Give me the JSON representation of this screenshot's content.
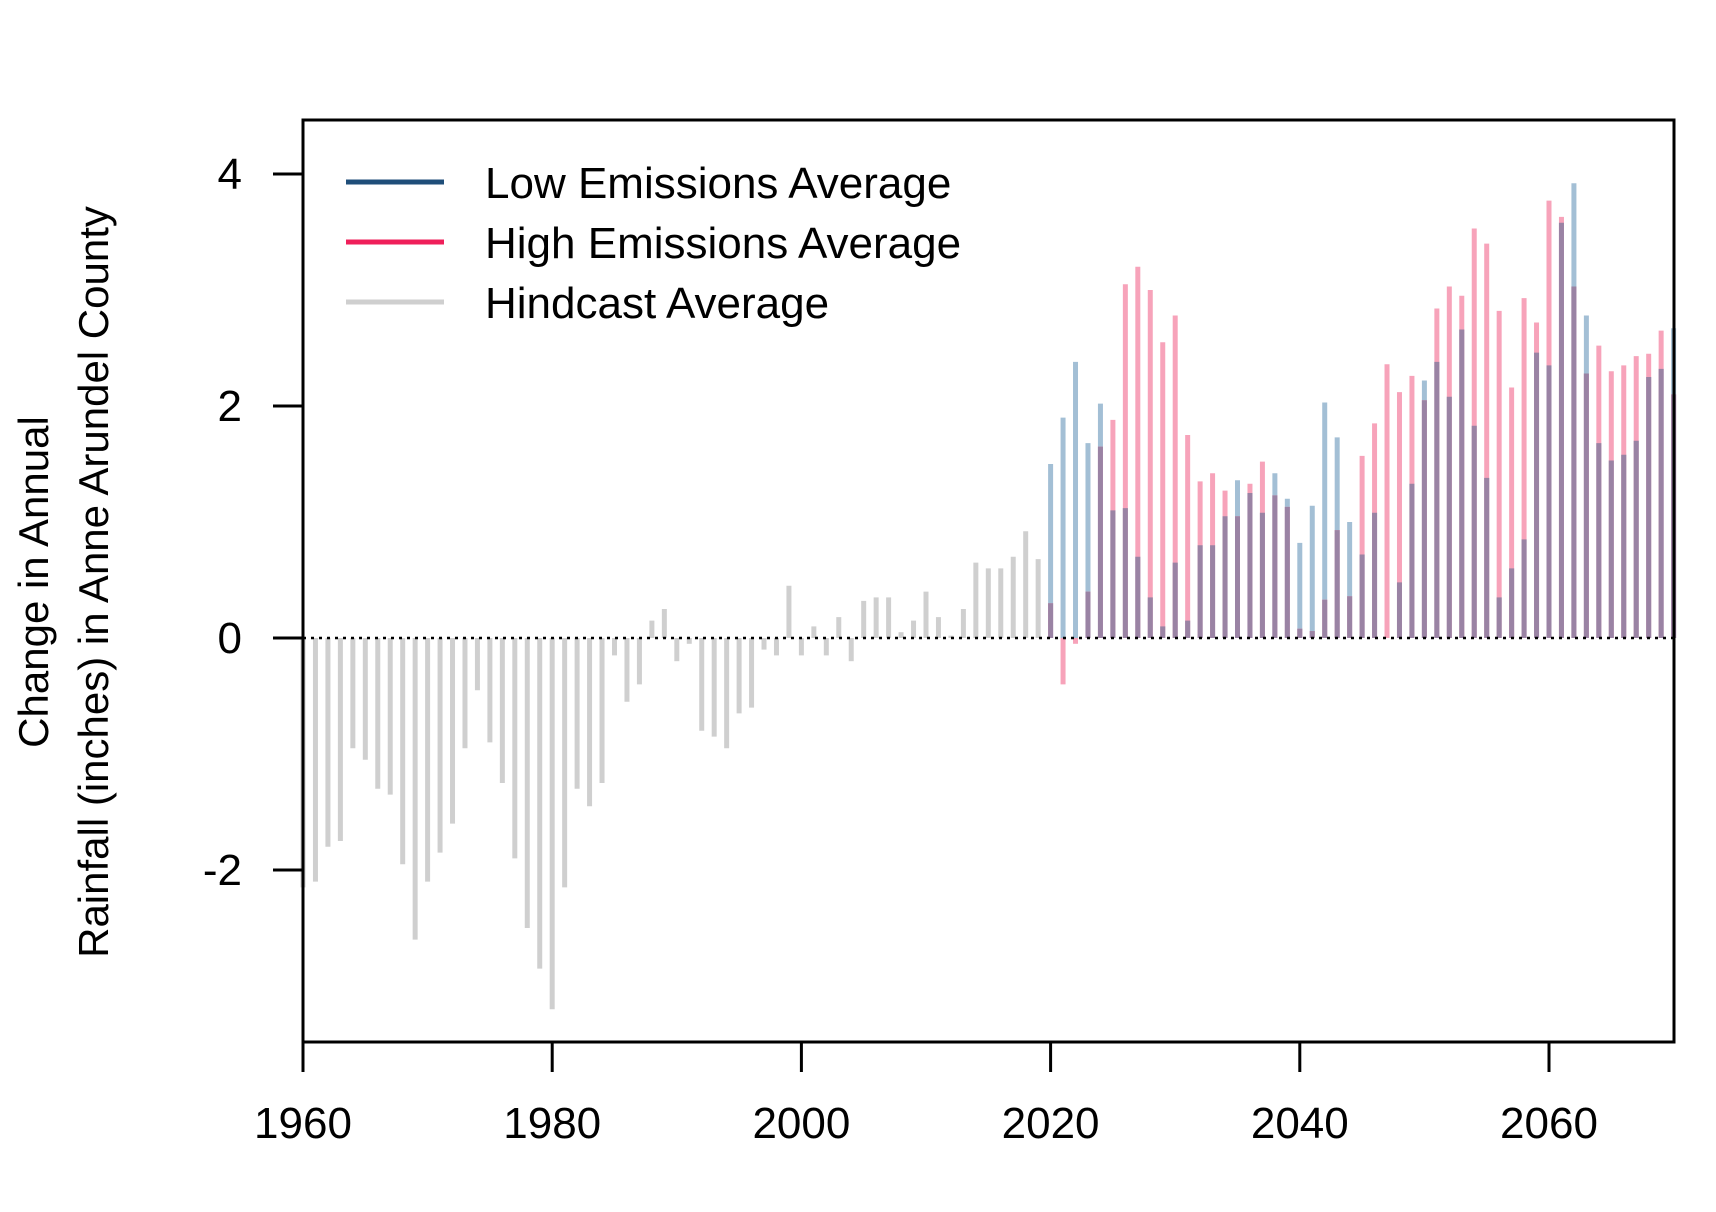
{
  "chart_data": {
    "type": "bar",
    "ylabel_line1": "Change in Annual",
    "ylabel_line2": "Rainfall (inches) in Anne Arundel County",
    "xlim": [
      1960,
      2070
    ],
    "ylim": [
      -3.5,
      4.5
    ],
    "xticks": [
      "1960",
      "1980",
      "2000",
      "2020",
      "2040",
      "2060"
    ],
    "yticks": [
      "-2",
      "0",
      "2",
      "4"
    ],
    "legend_position": "top-left",
    "colors": {
      "low": "#1f4e79",
      "high": "#ef1f5a",
      "hindcast": "#cfcfcf",
      "low_bar": "#a3bfd5",
      "high_bar": "#f7a3ba",
      "overlap_bar": "#9a83a4"
    },
    "series": [
      {
        "name": "Hindcast Average",
        "x": [
          1960,
          1961,
          1962,
          1963,
          1964,
          1965,
          1966,
          1967,
          1968,
          1969,
          1970,
          1971,
          1972,
          1973,
          1974,
          1975,
          1976,
          1977,
          1978,
          1979,
          1980,
          1981,
          1982,
          1983,
          1984,
          1985,
          1986,
          1987,
          1988,
          1989,
          1990,
          1991,
          1992,
          1993,
          1994,
          1995,
          1996,
          1997,
          1998,
          1999,
          2000,
          2001,
          2002,
          2003,
          2004,
          2005,
          2006,
          2007,
          2008,
          2009,
          2010,
          2011,
          2012,
          2013,
          2014,
          2015,
          2016,
          2017,
          2018,
          2019
        ],
        "values": [
          -2.15,
          -2.1,
          -1.8,
          -1.75,
          -0.95,
          -1.05,
          -1.3,
          -1.35,
          -1.95,
          -2.6,
          -2.1,
          -1.85,
          -1.6,
          -0.95,
          -0.45,
          -0.9,
          -1.25,
          -1.9,
          -2.5,
          -2.85,
          -3.2,
          -2.15,
          -1.3,
          -1.45,
          -1.25,
          -0.15,
          -0.55,
          -0.4,
          0.15,
          0.25,
          -0.2,
          -0.05,
          -0.8,
          -0.85,
          -0.95,
          -0.65,
          -0.6,
          -0.1,
          -0.15,
          0.45,
          -0.15,
          0.1,
          -0.15,
          0.18,
          -0.2,
          0.32,
          0.35,
          0.35,
          0.05,
          0.15,
          0.4,
          0.18,
          0.02,
          0.25,
          0.65,
          0.6,
          0.6,
          0.7,
          0.92,
          0.68
        ]
      },
      {
        "name": "Low Emissions Average",
        "x": [
          2020,
          2021,
          2022,
          2023,
          2024,
          2025,
          2026,
          2027,
          2028,
          2029,
          2030,
          2031,
          2032,
          2033,
          2034,
          2035,
          2036,
          2037,
          2038,
          2039,
          2040,
          2041,
          2042,
          2043,
          2044,
          2045,
          2046,
          2047,
          2048,
          2049,
          2050,
          2051,
          2052,
          2053,
          2054,
          2055,
          2056,
          2057,
          2058,
          2059,
          2060,
          2061,
          2062,
          2063,
          2064,
          2065,
          2066,
          2067,
          2068,
          2069,
          2070
        ],
        "values": [
          1.5,
          1.9,
          2.38,
          1.68,
          2.02,
          1.1,
          1.12,
          0.7,
          0.35,
          0.1,
          0.65,
          0.15,
          0.8,
          0.8,
          1.05,
          1.36,
          1.25,
          1.08,
          1.42,
          1.2,
          0.82,
          1.14,
          2.03,
          1.73,
          1.0,
          0.72,
          1.08,
          0.0,
          0.48,
          1.33,
          2.22,
          2.38,
          2.08,
          2.66,
          1.83,
          1.38,
          0.35,
          0.6,
          0.85,
          2.46,
          2.35,
          3.58,
          3.92,
          2.78,
          1.68,
          1.53,
          1.58,
          1.7,
          2.25,
          2.32,
          2.67
        ]
      },
      {
        "name": "High Emissions Average",
        "x": [
          2020,
          2021,
          2022,
          2023,
          2024,
          2025,
          2026,
          2027,
          2028,
          2029,
          2030,
          2031,
          2032,
          2033,
          2034,
          2035,
          2036,
          2037,
          2038,
          2039,
          2040,
          2041,
          2042,
          2043,
          2044,
          2045,
          2046,
          2047,
          2048,
          2049,
          2050,
          2051,
          2052,
          2053,
          2054,
          2055,
          2056,
          2057,
          2058,
          2059,
          2060,
          2061,
          2062,
          2063,
          2064,
          2065,
          2066,
          2067,
          2068,
          2069,
          2070
        ],
        "values": [
          0.3,
          -0.4,
          -0.05,
          0.4,
          1.65,
          1.88,
          3.05,
          3.2,
          3.0,
          2.55,
          2.78,
          1.75,
          1.35,
          1.42,
          1.27,
          1.05,
          1.33,
          1.52,
          1.23,
          1.13,
          0.08,
          0.06,
          0.33,
          0.93,
          0.36,
          1.57,
          1.85,
          2.36,
          2.12,
          2.26,
          2.05,
          2.84,
          3.03,
          2.95,
          3.53,
          3.4,
          2.82,
          2.16,
          2.93,
          2.72,
          3.77,
          3.63,
          3.03,
          2.28,
          2.52,
          2.3,
          2.35,
          2.43,
          2.45,
          2.65,
          2.1
        ]
      }
    ],
    "zero_line": "dotted"
  }
}
